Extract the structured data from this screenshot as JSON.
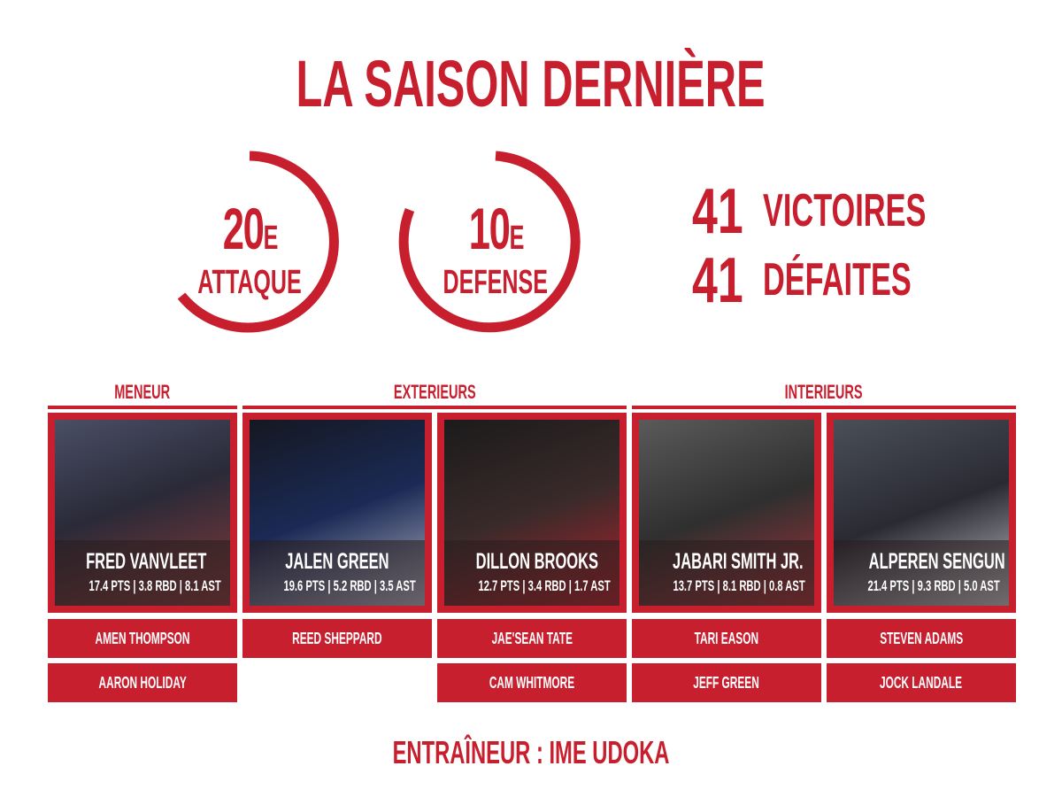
{
  "title": "LA SAISON DERNIÈRE",
  "accent_color": "#c81f2f",
  "rankings": [
    {
      "rank": "20",
      "suffix": "E",
      "label": "ATTAQUE"
    },
    {
      "rank": "10",
      "suffix": "E",
      "label": "DEFENSE"
    }
  ],
  "record": {
    "wins": "41",
    "wins_label": "VICTOIRES",
    "losses": "41",
    "losses_label": "DÉFAITES"
  },
  "groups": [
    "MENEUR",
    "EXTERIEURS",
    "INTERIEURS"
  ],
  "starters": [
    {
      "name": "FRED VANVLEET",
      "stats": "17.4 PTS | 3.8 RBD | 8.1 AST"
    },
    {
      "name": "JALEN GREEN",
      "stats": "19.6 PTS | 5.2 RBD | 3.5 AST"
    },
    {
      "name": "DILLON BROOKS",
      "stats": "12.7 PTS | 3.4 RBD | 1.7 AST"
    },
    {
      "name": "JABARI SMITH JR.",
      "stats": "13.7 PTS | 8.1 RBD | 0.8 AST"
    },
    {
      "name": "ALPEREN SENGUN",
      "stats": "21.4 PTS | 9.3 RBD | 5.0 AST"
    }
  ],
  "bench": [
    [
      "AMEN THOMPSON",
      "AARON HOLIDAY"
    ],
    [
      "REED SHEPPARD"
    ],
    [
      "JAE'SEAN TATE",
      "CAM WHITMORE"
    ],
    [
      "TARI EASON",
      "JEFF GREEN"
    ],
    [
      "STEVEN ADAMS",
      "JOCK LANDALE"
    ]
  ],
  "coach": "ENTRAÎNEUR : IME UDOKA"
}
